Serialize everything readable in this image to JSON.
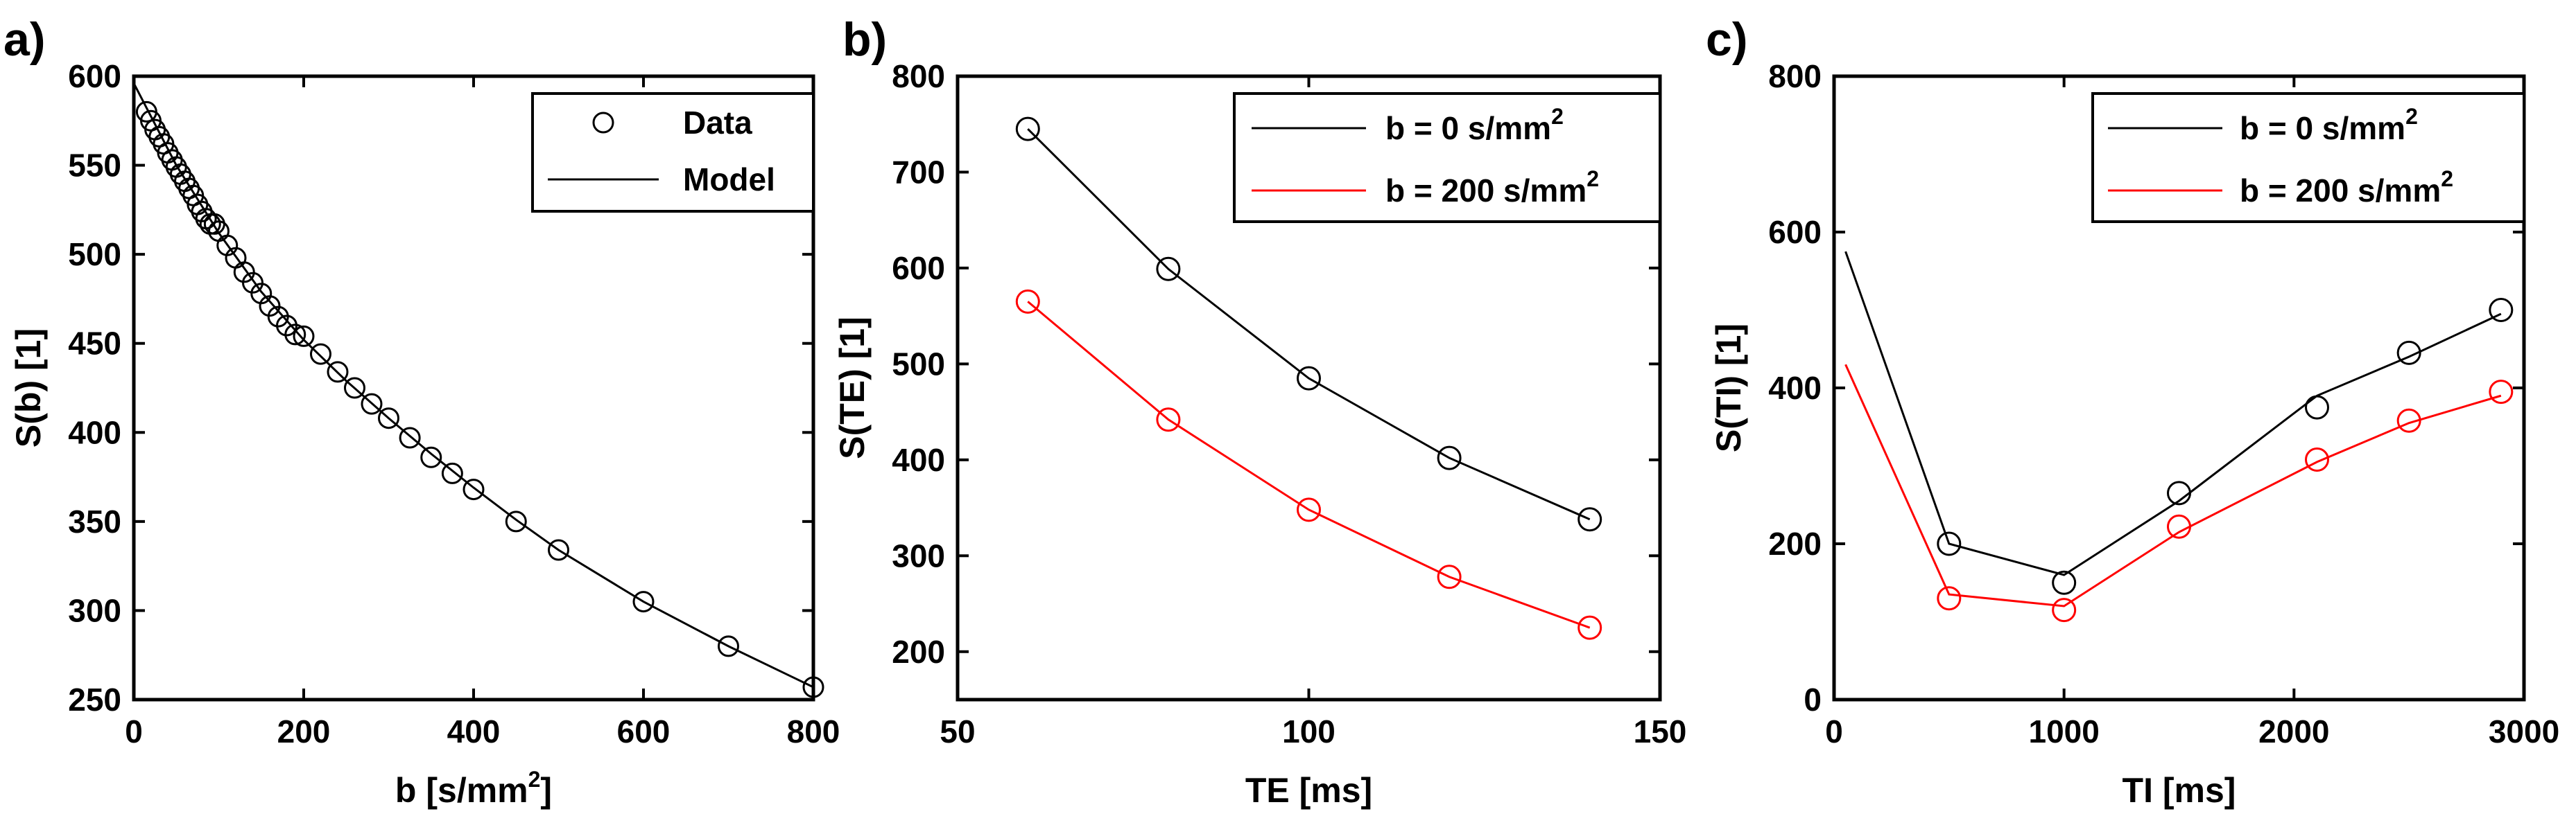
{
  "chart_data": [
    {
      "type": "scatter",
      "panel_label": "a)",
      "xlabel": "b  [s/mm",
      "xlabel_sup": "2",
      "xlabel_end": "]",
      "ylabel": "S(b)  [1]",
      "xlim": [
        0,
        800
      ],
      "ylim": [
        250,
        600
      ],
      "xticks": [
        0,
        200,
        400,
        600,
        800
      ],
      "yticks": [
        250,
        300,
        350,
        400,
        450,
        500,
        550,
        600
      ],
      "legend": {
        "position": "top-right",
        "entries": [
          "Data",
          "Model"
        ]
      },
      "series": [
        {
          "name": "Data",
          "kind": "markers",
          "color": "#000000",
          "x": [
            15,
            20,
            25,
            30,
            35,
            40,
            45,
            50,
            55,
            60,
            65,
            70,
            75,
            80,
            85,
            90,
            95,
            100,
            110,
            120,
            130,
            140,
            150,
            160,
            170,
            180,
            190,
            200,
            220,
            240,
            260,
            280,
            300,
            325,
            350,
            375,
            400,
            450,
            500,
            600,
            700,
            800
          ],
          "y": [
            580,
            575,
            570,
            566,
            562,
            557,
            553,
            549,
            545,
            541,
            537,
            533,
            528,
            524,
            520,
            517,
            517,
            513,
            505,
            498,
            490,
            484,
            478,
            471,
            465,
            460,
            455,
            454,
            444,
            434,
            425,
            416,
            408,
            397,
            386,
            377,
            368,
            350,
            334,
            305,
            280,
            257
          ]
        },
        {
          "name": "Model",
          "kind": "line",
          "color": "#000000",
          "x": [
            0,
            50,
            100,
            150,
            200,
            250,
            300,
            350,
            400,
            450,
            500,
            600,
            700,
            800
          ],
          "y": [
            596,
            550,
            512,
            479,
            452,
            429,
            408,
            388,
            369,
            351,
            334,
            305,
            280,
            257
          ]
        }
      ]
    },
    {
      "type": "line",
      "panel_label": "b)",
      "xlabel": "TE  [ms]",
      "ylabel": "S(TE)  [1]",
      "xlim": [
        50,
        150
      ],
      "ylim": [
        150,
        800
      ],
      "xticks": [
        50,
        100,
        150
      ],
      "yticks": [
        200,
        300,
        400,
        500,
        600,
        700,
        800
      ],
      "legend": {
        "position": "top-right",
        "entries": [
          "b = 0 s/mm2",
          "b = 200 s/mm2"
        ]
      },
      "series": [
        {
          "name": "b = 0 s/mm",
          "sup": "2",
          "color": "#000000",
          "x": [
            60,
            80,
            100,
            120,
            140
          ],
          "y": [
            745,
            599,
            485,
            402,
            338
          ]
        },
        {
          "name": "b = 200 s/mm",
          "sup": "2",
          "color": "#ff0000",
          "x": [
            60,
            80,
            100,
            120,
            140
          ],
          "y": [
            565,
            442,
            348,
            278,
            225
          ]
        }
      ]
    },
    {
      "type": "line",
      "panel_label": "c)",
      "xlabel": "TI  [ms]",
      "ylabel": "S(TI)  [1]",
      "xlim": [
        0,
        3000
      ],
      "ylim": [
        0,
        800
      ],
      "xticks": [
        0,
        1000,
        2000,
        3000
      ],
      "yticks": [
        0,
        200,
        400,
        600,
        800
      ],
      "legend": {
        "position": "top-right",
        "entries": [
          "b = 0 s/mm2",
          "b = 200 s/mm2"
        ]
      },
      "series": [
        {
          "name": "b = 0 s/mm",
          "sup": "2",
          "color": "#000000",
          "data_x": [
            500,
            1000,
            1500,
            2100,
            2500,
            2900
          ],
          "data_y": [
            200,
            150,
            265,
            375,
            445,
            500
          ],
          "model_x": [
            50,
            500,
            1000,
            1500,
            2100,
            2500,
            2900
          ],
          "model_y": [
            575,
            200,
            160,
            255,
            390,
            440,
            495
          ]
        },
        {
          "name": "b = 200 s/mm",
          "sup": "2",
          "color": "#ff0000",
          "data_x": [
            500,
            1000,
            1500,
            2100,
            2500,
            2900
          ],
          "data_y": [
            130,
            115,
            222,
            308,
            358,
            395
          ],
          "model_x": [
            50,
            500,
            1000,
            1500,
            2100,
            2500,
            2900
          ],
          "model_y": [
            430,
            135,
            120,
            215,
            305,
            355,
            390
          ]
        }
      ]
    }
  ]
}
